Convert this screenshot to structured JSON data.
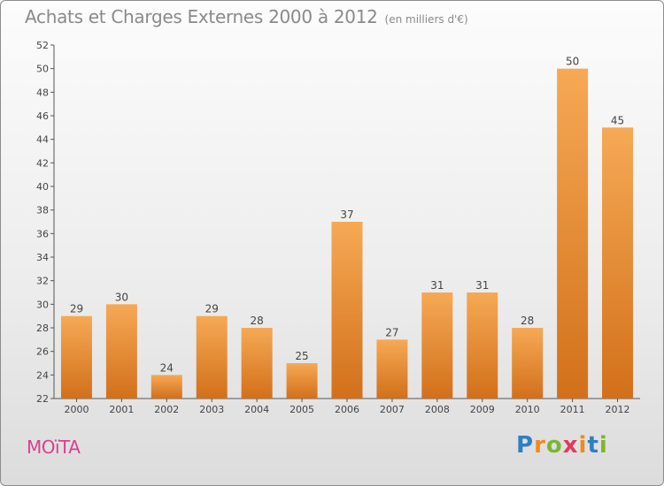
{
  "title": "Achats et Charges Externes 2000 à 2012",
  "unit_note": "(en milliers d'€)",
  "commune": "MOïTA",
  "logo": {
    "letters": [
      "P",
      "r",
      "o",
      "x",
      "i",
      "t",
      "i"
    ],
    "colors": [
      "#2e7fc4",
      "#f08a1c",
      "#7cb62e",
      "#e23a5a",
      "#f08a1c",
      "#2e7fc4",
      "#7cb62e"
    ]
  },
  "colors": {
    "bar": "#ee8a2c",
    "bar_light": "#f6a955",
    "bar_dark": "#d2701a",
    "axis": "#555555",
    "grid": "#cfcfcf"
  },
  "chart_data": {
    "type": "bar",
    "categories": [
      "2000",
      "2001",
      "2002",
      "2003",
      "2004",
      "2005",
      "2006",
      "2007",
      "2008",
      "2009",
      "2010",
      "2011",
      "2012"
    ],
    "values": [
      29,
      30,
      24,
      29,
      28,
      25,
      37,
      27,
      31,
      31,
      28,
      50,
      45
    ],
    "data_labels": [
      "29",
      "30",
      "24",
      "29",
      "28",
      "25",
      "37",
      "27",
      "31",
      "31",
      "28",
      "50",
      "45"
    ],
    "ylim": [
      22,
      52
    ],
    "yticks": [
      22,
      24,
      26,
      28,
      30,
      32,
      34,
      36,
      38,
      40,
      42,
      44,
      46,
      48,
      50,
      52
    ],
    "xlabel": "",
    "ylabel": "",
    "grid": false
  }
}
